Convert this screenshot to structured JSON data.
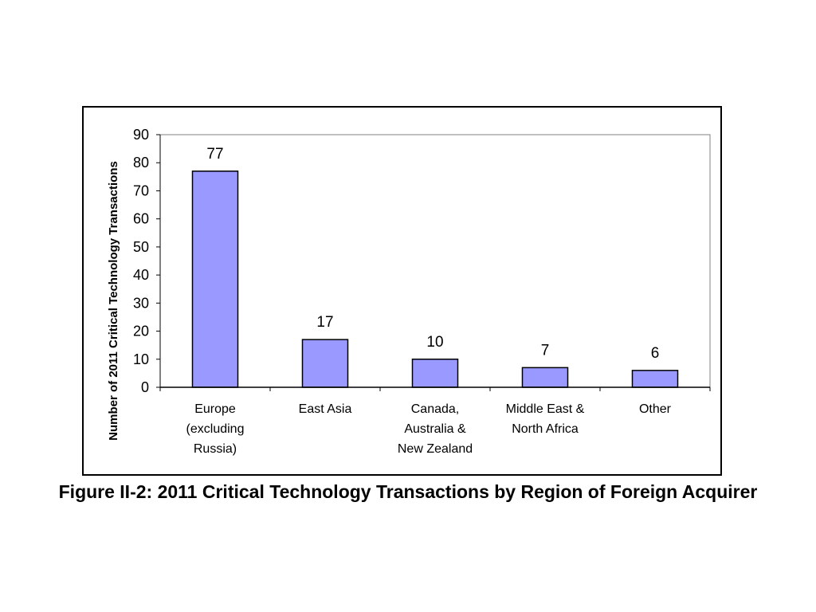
{
  "chart_data": {
    "type": "bar",
    "categories": [
      [
        "Europe",
        "(excluding",
        "Russia)"
      ],
      [
        "East Asia"
      ],
      [
        "Canada,",
        "Australia &",
        "New  Zealand"
      ],
      [
        "Middle East &",
        "North Africa"
      ],
      [
        "Other"
      ]
    ],
    "values": [
      77,
      17,
      10,
      7,
      6
    ],
    "data_labels": [
      "77",
      "17",
      "10",
      "7",
      "6"
    ],
    "ylabel": "Number of 2011 Critical Technology Transactions",
    "xlabel": "",
    "ylim": [
      0,
      90
    ],
    "yticks": [
      0,
      10,
      20,
      30,
      40,
      50,
      60,
      70,
      80,
      90
    ],
    "grid": false,
    "legend": "none",
    "bar_color": "#9999ff",
    "bar_edge_color": "#000000"
  },
  "caption": "Figure II-2: 2011 Critical Technology Transactions by Region of Foreign Acquirer"
}
